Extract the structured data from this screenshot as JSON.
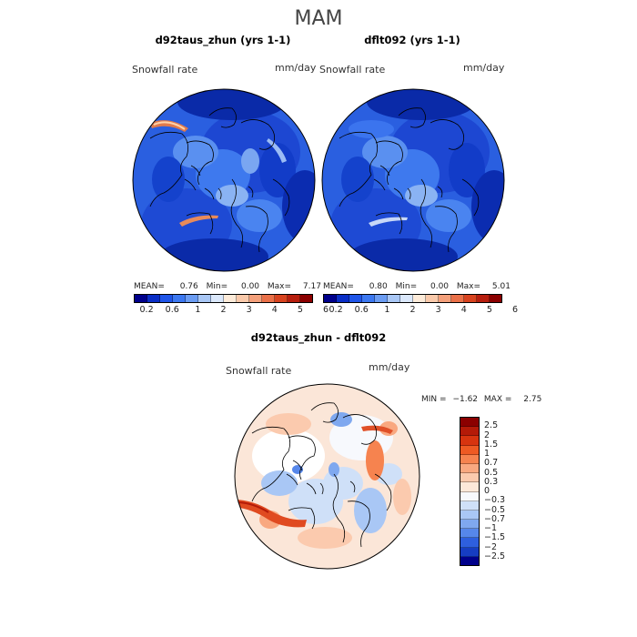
{
  "season": "MAM",
  "panels": [
    {
      "title": "d92taus_zhun (yrs 1-1)",
      "variable": "Snowfall rate",
      "units": "mm/day",
      "mean_label": "MEAN=",
      "mean": "0.76",
      "min_label": "Min=",
      "min": "0.00",
      "max_label": "Max=",
      "max": "7.17"
    },
    {
      "title": "dflt092 (yrs 1-1)",
      "variable": "Snowfall rate",
      "units": "mm/day",
      "mean_label": "MEAN=",
      "mean": "0.80",
      "min_label": "Min=",
      "min": "0.00",
      "max_label": "Max=",
      "max": "5.01"
    }
  ],
  "colorbar_top": {
    "colors": [
      "#00008b",
      "#0a2ec6",
      "#1f55e8",
      "#3c78f0",
      "#6b9cf2",
      "#a9c7f5",
      "#dbe8fb",
      "#fdebd9",
      "#f9c9aa",
      "#f4a07b",
      "#ea7048",
      "#d8431f",
      "#b71e0e",
      "#8b0000"
    ],
    "ticks": [
      "0.2",
      "0.6",
      "1",
      "2",
      "3",
      "4",
      "5",
      "6"
    ]
  },
  "difference": {
    "title": "d92taus_zhun - dflt092",
    "variable": "Snowfall rate",
    "units": "mm/day",
    "min_label": "MIN =",
    "min": "−1.62",
    "max_label": "MAX =",
    "max": "2.75"
  },
  "colorbar_diff": {
    "colors": [
      "#8b0000",
      "#b41a08",
      "#d7340f",
      "#ee5a23",
      "#f6834f",
      "#f9a880",
      "#fbcaae",
      "#fde8d9",
      "#f7f9fd",
      "#cfe0f8",
      "#a9c7f5",
      "#7fa8ef",
      "#5687ea",
      "#2e5fde",
      "#163dc2",
      "#00008b"
    ],
    "labels": [
      "2.5",
      "2",
      "1.5",
      "1",
      "0.7",
      "0.5",
      "0.3",
      "0",
      "−0.3",
      "−0.5",
      "−0.7",
      "−1",
      "−1.5",
      "−2",
      "−2.5"
    ]
  },
  "chart_data": [
    {
      "type": "heatmap",
      "title": "d92taus_zhun (yrs 1-1)",
      "variable": "Snowfall rate",
      "units": "mm/day",
      "projection": "north polar stereographic",
      "mean": 0.76,
      "min": 0.0,
      "max": 7.17,
      "colorbar_levels": [
        0.2,
        0.6,
        1,
        2,
        3,
        4,
        5,
        6
      ]
    },
    {
      "type": "heatmap",
      "title": "dflt092 (yrs 1-1)",
      "variable": "Snowfall rate",
      "units": "mm/day",
      "projection": "north polar stereographic",
      "mean": 0.8,
      "min": 0.0,
      "max": 5.01,
      "colorbar_levels": [
        0.2,
        0.6,
        1,
        2,
        3,
        4,
        5,
        6
      ]
    },
    {
      "type": "heatmap",
      "title": "d92taus_zhun - dflt092",
      "variable": "Snowfall rate",
      "units": "mm/day",
      "projection": "north polar stereographic",
      "min": -1.62,
      "max": 2.75,
      "colorbar_levels": [
        -2.5,
        -2,
        -1.5,
        -1,
        -0.7,
        -0.5,
        -0.3,
        0,
        0.3,
        0.5,
        0.7,
        1,
        1.5,
        2,
        2.5
      ]
    }
  ]
}
